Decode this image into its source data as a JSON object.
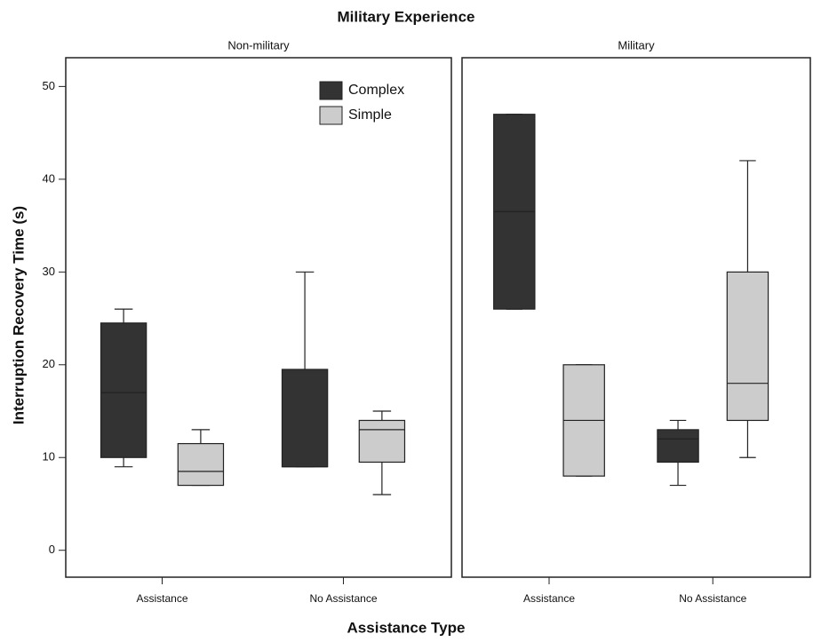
{
  "chart_data": {
    "type": "box",
    "title": "Military Experience",
    "xlabel": "Assistance Type",
    "ylabel": "Interruption Recovery Time (s)",
    "panels": [
      "Non-military",
      "Military"
    ],
    "categories": [
      "Assistance",
      "No Assistance"
    ],
    "ylim": [
      -2.9,
      53.1
    ],
    "yticks": [
      0,
      10,
      20,
      30,
      40,
      50
    ],
    "legend": "top-right",
    "series": [
      {
        "name": "Complex",
        "color": "#333333",
        "values": [
          [
            {
              "min": 9,
              "q1": 10,
              "median": 17,
              "q3": 24.5,
              "max": 26
            },
            {
              "min": 9,
              "q1": 9,
              "median": 9,
              "q3": 19.5,
              "max": 30
            }
          ],
          [
            {
              "min": 26,
              "q1": 26,
              "median": 36.5,
              "q3": 47,
              "max": 47
            },
            {
              "min": 7,
              "q1": 9.5,
              "median": 12,
              "q3": 13,
              "max": 14
            }
          ]
        ]
      },
      {
        "name": "Simple",
        "color": "#cccccc",
        "values": [
          [
            {
              "min": 7,
              "q1": 7,
              "median": 8.5,
              "q3": 11.5,
              "max": 13
            },
            {
              "min": 6,
              "q1": 9.5,
              "median": 13,
              "q3": 14,
              "max": 15
            }
          ],
          [
            {
              "min": 8,
              "q1": 8,
              "median": 14,
              "q3": 20,
              "max": 20
            },
            {
              "min": 10,
              "q1": 14,
              "median": 18,
              "q3": 30,
              "max": 42
            }
          ]
        ]
      }
    ]
  }
}
